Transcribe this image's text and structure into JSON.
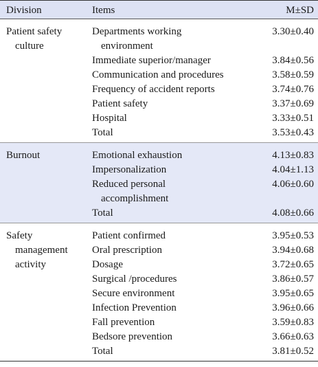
{
  "header": {
    "division": "Division",
    "items": "Items",
    "value": "M±SD"
  },
  "sections": [
    {
      "division": [
        "Patient safety",
        "culture"
      ],
      "rows": [
        {
          "item": [
            "Departments working",
            "environment"
          ],
          "value": "3.30±0.40"
        },
        {
          "item": [
            "Immediate superior/manager"
          ],
          "value": "3.84±0.56"
        },
        {
          "item": [
            "Communication and procedures"
          ],
          "value": "3.58±0.59"
        },
        {
          "item": [
            "Frequency of accident reports"
          ],
          "value": "3.74±0.76"
        },
        {
          "item": [
            "Patient safety"
          ],
          "value": "3.37±0.69"
        },
        {
          "item": [
            "Hospital"
          ],
          "value": "3.33±0.51"
        },
        {
          "item": [
            "Total"
          ],
          "value": "3.53±0.43"
        }
      ]
    },
    {
      "division": [
        "Burnout"
      ],
      "rows": [
        {
          "item": [
            "Emotional exhaustion"
          ],
          "value": "4.13±0.83"
        },
        {
          "item": [
            "Impersonalization"
          ],
          "value": "4.04±1.13"
        },
        {
          "item": [
            "Reduced personal",
            "accomplishment"
          ],
          "value": "4.06±0.60"
        },
        {
          "item": [
            "Total"
          ],
          "value": "4.08±0.66"
        }
      ]
    },
    {
      "division": [
        "Safety",
        "management",
        "activity"
      ],
      "rows": [
        {
          "item": [
            "Patient confirmed"
          ],
          "value": "3.95±0.53"
        },
        {
          "item": [
            "Oral prescription"
          ],
          "value": "3.94±0.68"
        },
        {
          "item": [
            "Dosage"
          ],
          "value": "3.72±0.65"
        },
        {
          "item": [
            "Surgical /procedures"
          ],
          "value": "3.86±0.57"
        },
        {
          "item": [
            "Secure environment"
          ],
          "value": "3.95±0.65"
        },
        {
          "item": [
            "Infection Prevention"
          ],
          "value": "3.96±0.66"
        },
        {
          "item": [
            "Fall prevention"
          ],
          "value": "3.59±0.83"
        },
        {
          "item": [
            "Bedsore prevention"
          ],
          "value": "3.66±0.63"
        },
        {
          "item": [
            "Total"
          ],
          "value": "3.81±0.52"
        }
      ]
    }
  ]
}
